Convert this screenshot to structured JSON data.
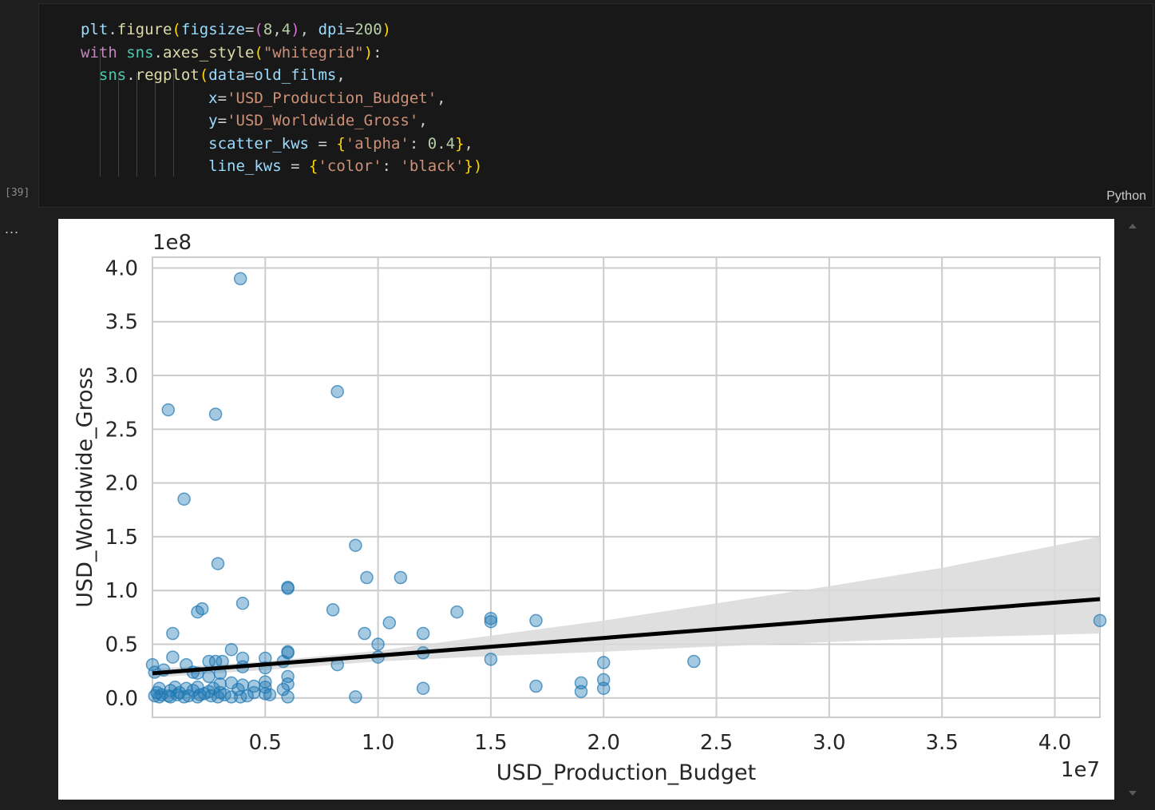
{
  "cell": {
    "execution_count": "[39]",
    "language": "Python",
    "code_lines": [
      "plt.figure(figsize=(8,4), dpi=200)",
      "with sns.axes_style(\"whitegrid\"):",
      "  sns.regplot(data=old_films,",
      "              x='USD_Production_Budget',",
      "              y='USD_Worldwide_Gross',",
      "              scatter_kws = {'alpha': 0.4},",
      "              line_kws = {'color': 'black'})"
    ]
  },
  "output": {
    "menu_label": "..."
  },
  "colors": {
    "points": "#1f77b4",
    "regression_line": "#000000",
    "confidence_band": "#d9d9d9",
    "grid": "#cccccc",
    "code_keyword": "#c586c0",
    "code_function": "#dcdcaa",
    "code_variable": "#9cdcfe",
    "code_string": "#ce9178",
    "code_number": "#b5cea8",
    "code_module": "#4ec9b0"
  },
  "chart_data": {
    "type": "scatter",
    "xlabel": "USD_Production_Budget",
    "ylabel": "USD_Worldwide_Gross",
    "x_offset_label": "1e7",
    "y_offset_label": "1e8",
    "x_multiplier": 10000000,
    "y_multiplier": 100000000,
    "xlim": [
      0,
      42000000
    ],
    "ylim": [
      -18000000,
      410000000
    ],
    "x_ticks": [
      5000000,
      10000000,
      15000000,
      20000000,
      25000000,
      30000000,
      35000000,
      40000000
    ],
    "x_tick_labels": [
      "0.5",
      "1.0",
      "1.5",
      "2.0",
      "2.5",
      "3.0",
      "3.5",
      "4.0"
    ],
    "y_ticks": [
      0,
      50000000,
      100000000,
      150000000,
      200000000,
      250000000,
      300000000,
      350000000,
      400000000
    ],
    "y_tick_labels": [
      "0.0",
      "0.5",
      "1.0",
      "1.5",
      "2.0",
      "2.5",
      "3.0",
      "3.5",
      "4.0"
    ],
    "grid": "on",
    "points_alpha": 0.4,
    "points": [
      [
        3900000,
        390000000
      ],
      [
        8200000,
        285000000
      ],
      [
        700000,
        268000000
      ],
      [
        2800000,
        264000000
      ],
      [
        1400000,
        185000000
      ],
      [
        9000000,
        142000000
      ],
      [
        2900000,
        125000000
      ],
      [
        9500000,
        112000000
      ],
      [
        11000000,
        112000000
      ],
      [
        6000000,
        103000000
      ],
      [
        6000000,
        102000000
      ],
      [
        4000000,
        88000000
      ],
      [
        2200000,
        83000000
      ],
      [
        2000000,
        80000000
      ],
      [
        8000000,
        82000000
      ],
      [
        13500000,
        80000000
      ],
      [
        10500000,
        70000000
      ],
      [
        15000000,
        74000000
      ],
      [
        15000000,
        71000000
      ],
      [
        17000000,
        72000000
      ],
      [
        42000000,
        72000000
      ],
      [
        900000,
        60000000
      ],
      [
        9400000,
        60000000
      ],
      [
        12000000,
        60000000
      ],
      [
        10000000,
        50000000
      ],
      [
        3500000,
        45000000
      ],
      [
        6000000,
        43000000
      ],
      [
        6000000,
        42000000
      ],
      [
        12000000,
        42000000
      ],
      [
        900000,
        38000000
      ],
      [
        4000000,
        37000000
      ],
      [
        5000000,
        37000000
      ],
      [
        10000000,
        38000000
      ],
      [
        15000000,
        36000000
      ],
      [
        2500000,
        34000000
      ],
      [
        2800000,
        34000000
      ],
      [
        3100000,
        34000000
      ],
      [
        5800000,
        34000000
      ],
      [
        24000000,
        34000000
      ],
      [
        20000000,
        33000000
      ],
      [
        1500000,
        31000000
      ],
      [
        0,
        31000000
      ],
      [
        8200000,
        31000000
      ],
      [
        4000000,
        29000000
      ],
      [
        5000000,
        28000000
      ],
      [
        500000,
        26000000
      ],
      [
        100000,
        24000000
      ],
      [
        3000000,
        23000000
      ],
      [
        1800000,
        24000000
      ],
      [
        2000000,
        23000000
      ],
      [
        6000000,
        20000000
      ],
      [
        2500000,
        20000000
      ],
      [
        20000000,
        17000000
      ],
      [
        19000000,
        14000000
      ],
      [
        6000000,
        13000000
      ],
      [
        5000000,
        15000000
      ],
      [
        3500000,
        14000000
      ],
      [
        3000000,
        13000000
      ],
      [
        4000000,
        12000000
      ],
      [
        17000000,
        11000000
      ],
      [
        4500000,
        11000000
      ],
      [
        5000000,
        10000000
      ],
      [
        2000000,
        10000000
      ],
      [
        1000000,
        10000000
      ],
      [
        300000,
        9000000
      ],
      [
        1500000,
        9000000
      ],
      [
        2700000,
        9000000
      ],
      [
        3800000,
        8000000
      ],
      [
        12000000,
        9000000
      ],
      [
        20000000,
        9000000
      ],
      [
        5800000,
        8000000
      ],
      [
        800000,
        7000000
      ],
      [
        1800000,
        7000000
      ],
      [
        2500000,
        6000000
      ],
      [
        19000000,
        6000000
      ],
      [
        3000000,
        5000000
      ],
      [
        4500000,
        5000000
      ],
      [
        1200000,
        5000000
      ],
      [
        200000,
        5000000
      ],
      [
        2300000,
        4000000
      ],
      [
        3200000,
        3000000
      ],
      [
        5000000,
        4000000
      ],
      [
        5200000,
        3000000
      ],
      [
        400000,
        3000000
      ],
      [
        1100000,
        3000000
      ],
      [
        1600000,
        2000000
      ],
      [
        700000,
        2000000
      ],
      [
        2600000,
        2000000
      ],
      [
        3500000,
        1000000
      ],
      [
        6000000,
        1000000
      ],
      [
        9000000,
        1000000
      ],
      [
        300000,
        1000000
      ],
      [
        800000,
        1000000
      ],
      [
        1400000,
        1000000
      ],
      [
        2000000,
        1000000
      ],
      [
        2900000,
        1000000
      ],
      [
        3900000,
        1000000
      ],
      [
        4200000,
        2000000
      ],
      [
        100000,
        2000000
      ],
      [
        2100000,
        3000000
      ]
    ],
    "regression": {
      "x": [
        0,
        42000000
      ],
      "y": [
        23000000,
        92000000
      ]
    },
    "confidence_band": {
      "x": [
        0,
        5000000,
        10000000,
        15000000,
        20000000,
        25000000,
        30000000,
        35000000,
        42000000
      ],
      "upper": [
        27000000,
        34000000,
        44000000,
        58000000,
        72000000,
        88000000,
        104000000,
        121000000,
        150000000
      ],
      "lower": [
        19000000,
        26000000,
        34000000,
        39000000,
        43000000,
        48000000,
        52000000,
        56000000,
        60000000
      ]
    }
  }
}
